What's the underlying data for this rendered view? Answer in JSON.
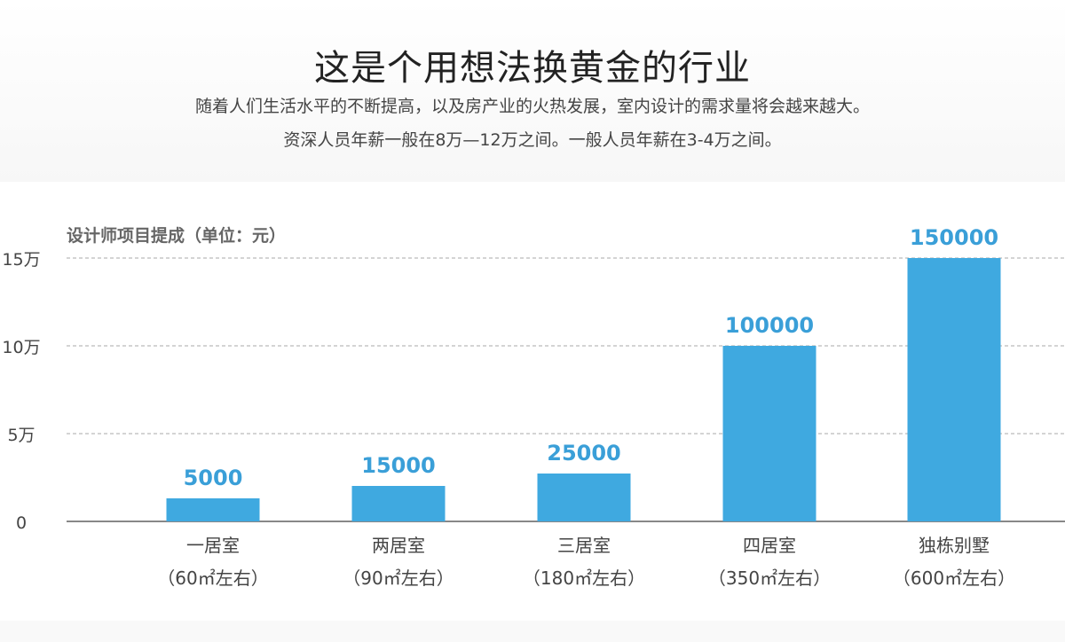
{
  "header": {
    "title": "这是个用想法换黄金的行业",
    "subtitle_line1": "随着人们生活水平的不断提高，以及房产业的火热发展，室内设计的需求量将会越来越大。",
    "subtitle_line2": "资深人员年薪一般在8万—12万之间。一般人员年薪在3-4万之间。"
  },
  "chart_data": {
    "type": "bar",
    "title": "设计师项目提成（单位：元）",
    "categories": [
      "一居室",
      "两居室",
      "三居室",
      "四居室",
      "独栋别墅"
    ],
    "category_sublabels": [
      "（60㎡左右）",
      "（90㎡左右）",
      "（180㎡左右）",
      "（350㎡左右）",
      "（600㎡左右）"
    ],
    "values": [
      5000,
      15000,
      25000,
      100000,
      150000
    ],
    "data_labels": [
      "5000",
      "15000",
      "25000",
      "100000",
      "150000"
    ],
    "ylim": [
      0,
      150000
    ],
    "yticks": [
      0,
      50000,
      100000,
      150000
    ],
    "ytick_labels": [
      "0",
      "5万",
      "10万",
      "15万"
    ],
    "grid": true,
    "colors": {
      "bar": "#3fa9e0",
      "label": "#3a9fd8",
      "grid": "#aaaaaa",
      "axis": "#888888"
    }
  }
}
